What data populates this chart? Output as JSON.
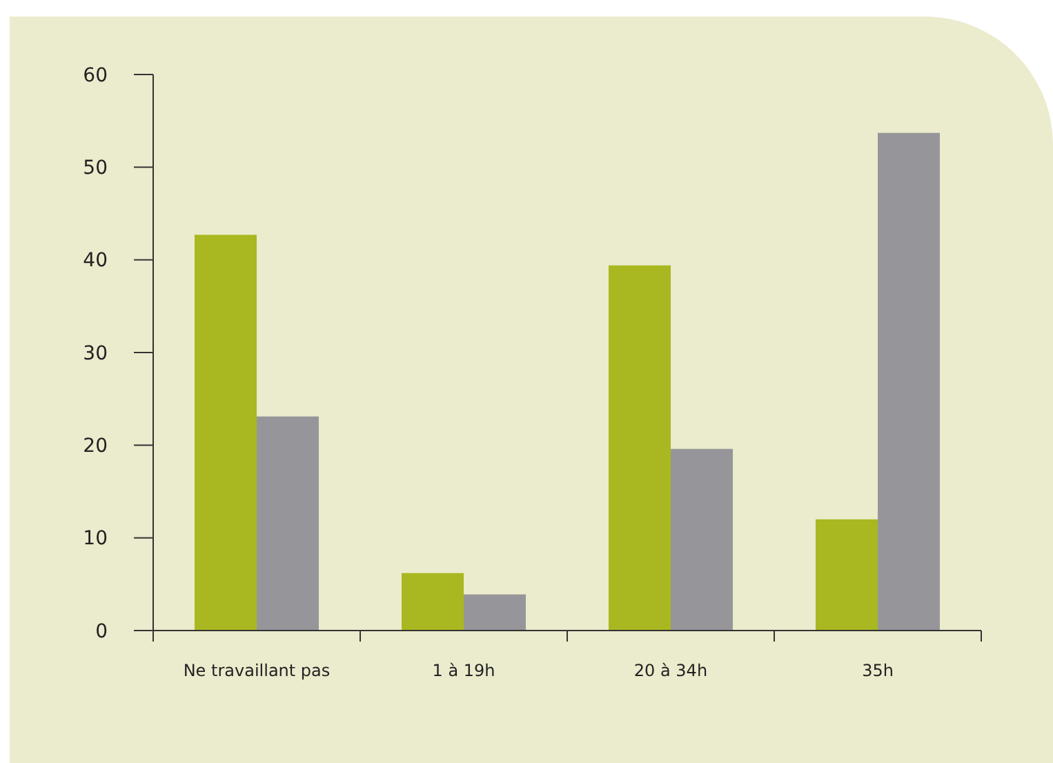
{
  "chart_data": {
    "type": "bar",
    "categories": [
      "Ne travaillant pas",
      "1 à 19h",
      "20 à 34h",
      "35h"
    ],
    "series": [
      {
        "color": "#a9b820",
        "values": [
          42.7,
          6.2,
          39.4,
          12
        ]
      },
      {
        "color": "#96969a",
        "values": [
          23.1,
          3.9,
          19.6,
          53.7
        ]
      }
    ],
    "ylim": [
      0,
      60
    ],
    "yticks": [
      0,
      10,
      20,
      30,
      40,
      50,
      60
    ]
  }
}
